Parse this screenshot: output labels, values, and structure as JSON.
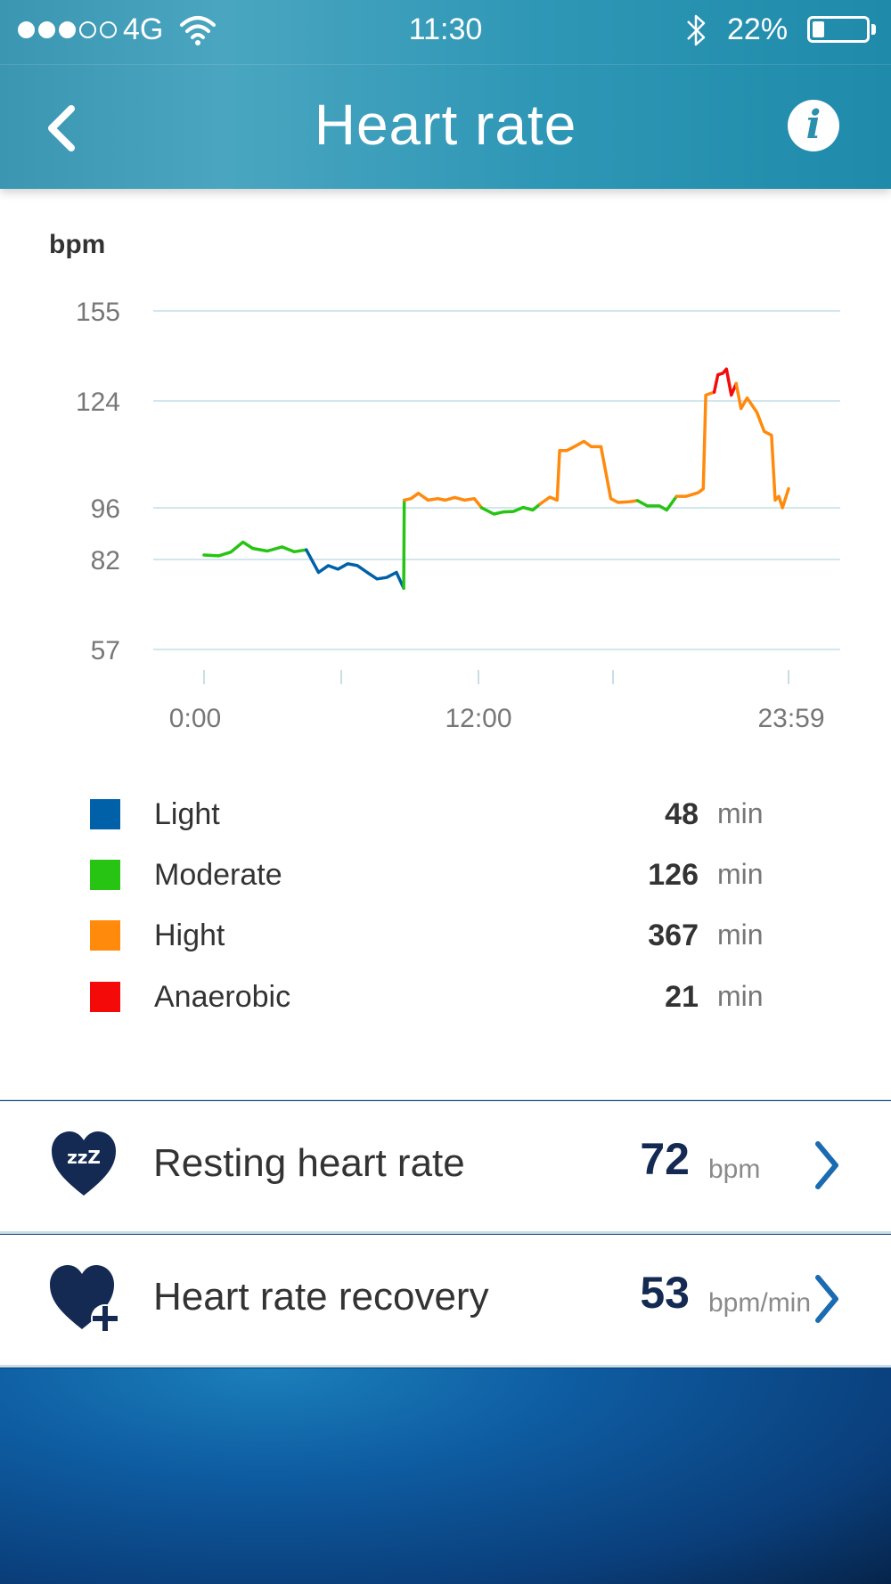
{
  "status_bar": {
    "carrier": "4G",
    "time": "11:30",
    "battery_percent": "22%",
    "battery_level": 0.22,
    "signal_strength": 3,
    "signal_max": 5
  },
  "nav": {
    "title": "Heart rate",
    "back_icon": "chevron-left-icon",
    "info_icon": "info-icon",
    "info_glyph": "i"
  },
  "chart_data": {
    "type": "line",
    "ylabel": "bpm",
    "y_ticks": [
      155,
      124,
      96,
      82,
      57
    ],
    "ylim": [
      57,
      155
    ],
    "x_tick_labels": [
      "0:00",
      "12:00",
      "23:59"
    ],
    "x_range_hours": [
      0,
      24
    ],
    "grid": true,
    "zone_colors": {
      "light": "#0060a8",
      "moderate": "#27c414",
      "high": "#ff8a0c",
      "anaerobic": "#f50a0a"
    },
    "segments": [
      {
        "zone": "moderate",
        "points": [
          [
            0,
            83.2
          ],
          [
            0.6,
            83.0
          ],
          [
            1.1,
            84.0
          ],
          [
            1.6,
            86.7
          ],
          [
            2.0,
            85.0
          ],
          [
            2.6,
            84.3
          ],
          [
            3.2,
            85.4
          ],
          [
            3.7,
            84.1
          ],
          [
            4.2,
            84.6
          ]
        ]
      },
      {
        "zone": "light",
        "points": [
          [
            4.2,
            84.6
          ],
          [
            4.7,
            78.4
          ],
          [
            5.1,
            80.3
          ],
          [
            5.5,
            79.3
          ],
          [
            5.9,
            80.8
          ],
          [
            6.3,
            80.3
          ],
          [
            6.7,
            78.4
          ],
          [
            7.1,
            76.6
          ],
          [
            7.5,
            77.0
          ],
          [
            7.9,
            78.4
          ],
          [
            8.2,
            74.0
          ]
        ]
      },
      {
        "zone": "moderate",
        "points": [
          [
            8.2,
            74.0
          ],
          [
            8.22,
            98.0
          ]
        ]
      },
      {
        "zone": "high",
        "points": [
          [
            8.22,
            98.0
          ],
          [
            8.5,
            98.4
          ],
          [
            8.8,
            99.8
          ],
          [
            9.2,
            98.0
          ],
          [
            9.6,
            98.4
          ],
          [
            9.9,
            98.0
          ],
          [
            10.3,
            98.7
          ],
          [
            10.7,
            98.0
          ],
          [
            11.1,
            98.4
          ],
          [
            11.4,
            96.0
          ]
        ]
      },
      {
        "zone": "moderate",
        "points": [
          [
            11.4,
            96.0
          ],
          [
            11.9,
            94.3
          ],
          [
            12.3,
            94.9
          ],
          [
            12.7,
            95.0
          ],
          [
            13.1,
            96.1
          ],
          [
            13.5,
            95.4
          ],
          [
            13.8,
            97.0
          ]
        ]
      },
      {
        "zone": "high",
        "points": [
          [
            13.8,
            97.0
          ],
          [
            14.2,
            98.8
          ],
          [
            14.5,
            98.0
          ],
          [
            14.6,
            111.0
          ],
          [
            14.9,
            111.0
          ],
          [
            15.2,
            112.0
          ],
          [
            15.6,
            113.4
          ],
          [
            15.9,
            112.0
          ],
          [
            16.3,
            112.0
          ],
          [
            16.7,
            98.4
          ],
          [
            17.0,
            97.4
          ],
          [
            17.5,
            97.6
          ],
          [
            17.8,
            97.9
          ]
        ]
      },
      {
        "zone": "moderate",
        "points": [
          [
            17.8,
            97.9
          ],
          [
            18.2,
            96.5
          ],
          [
            18.7,
            96.5
          ],
          [
            19.0,
            95.4
          ],
          [
            19.4,
            99.0
          ]
        ]
      },
      {
        "zone": "high",
        "points": [
          [
            19.4,
            99.0
          ],
          [
            19.8,
            99.0
          ],
          [
            20.3,
            100.0
          ],
          [
            20.5,
            101.0
          ],
          [
            20.6,
            126.0
          ],
          [
            20.95,
            127.0
          ]
        ]
      },
      {
        "zone": "anaerobic",
        "points": [
          [
            20.95,
            127.0
          ],
          [
            21.1,
            133.0
          ],
          [
            21.3,
            133.5
          ],
          [
            21.45,
            135.0
          ],
          [
            21.65,
            126.0
          ],
          [
            21.85,
            130.0
          ]
        ]
      },
      {
        "zone": "high",
        "points": [
          [
            21.85,
            130.0
          ],
          [
            22.05,
            122.0
          ],
          [
            22.3,
            125.0
          ],
          [
            22.7,
            121.0
          ],
          [
            23.0,
            116.0
          ],
          [
            23.3,
            115.0
          ],
          [
            23.45,
            98.0
          ],
          [
            23.6,
            99.0
          ],
          [
            23.75,
            96.0
          ],
          [
            24.0,
            101.0
          ]
        ]
      }
    ]
  },
  "legend": [
    {
      "name": "Light",
      "value": "48",
      "unit": "min",
      "color": "#0060a8"
    },
    {
      "name": "Moderate",
      "value": "126",
      "unit": "min",
      "color": "#27c414"
    },
    {
      "name": "Hight",
      "value": "367",
      "unit": "min",
      "color": "#ff8a0c"
    },
    {
      "name": "Anaerobic",
      "value": "21",
      "unit": "min",
      "color": "#f50a0a"
    }
  ],
  "rows": [
    {
      "label": "Resting heart rate",
      "value": "72",
      "unit": "bpm",
      "icon": "sleep-heart-icon",
      "icon_text": "zzZ",
      "chevron": "chevron-right-icon"
    },
    {
      "label": "Heart rate recovery",
      "value": "53",
      "unit": "bpm/min",
      "icon": "heart-plus-icon",
      "chevron": "chevron-right-icon"
    }
  ],
  "colors": {
    "header": "#2f97b6",
    "accent_dark": "#142a52",
    "chevron": "#1a6bb0",
    "grid": "#d3e6ee"
  }
}
